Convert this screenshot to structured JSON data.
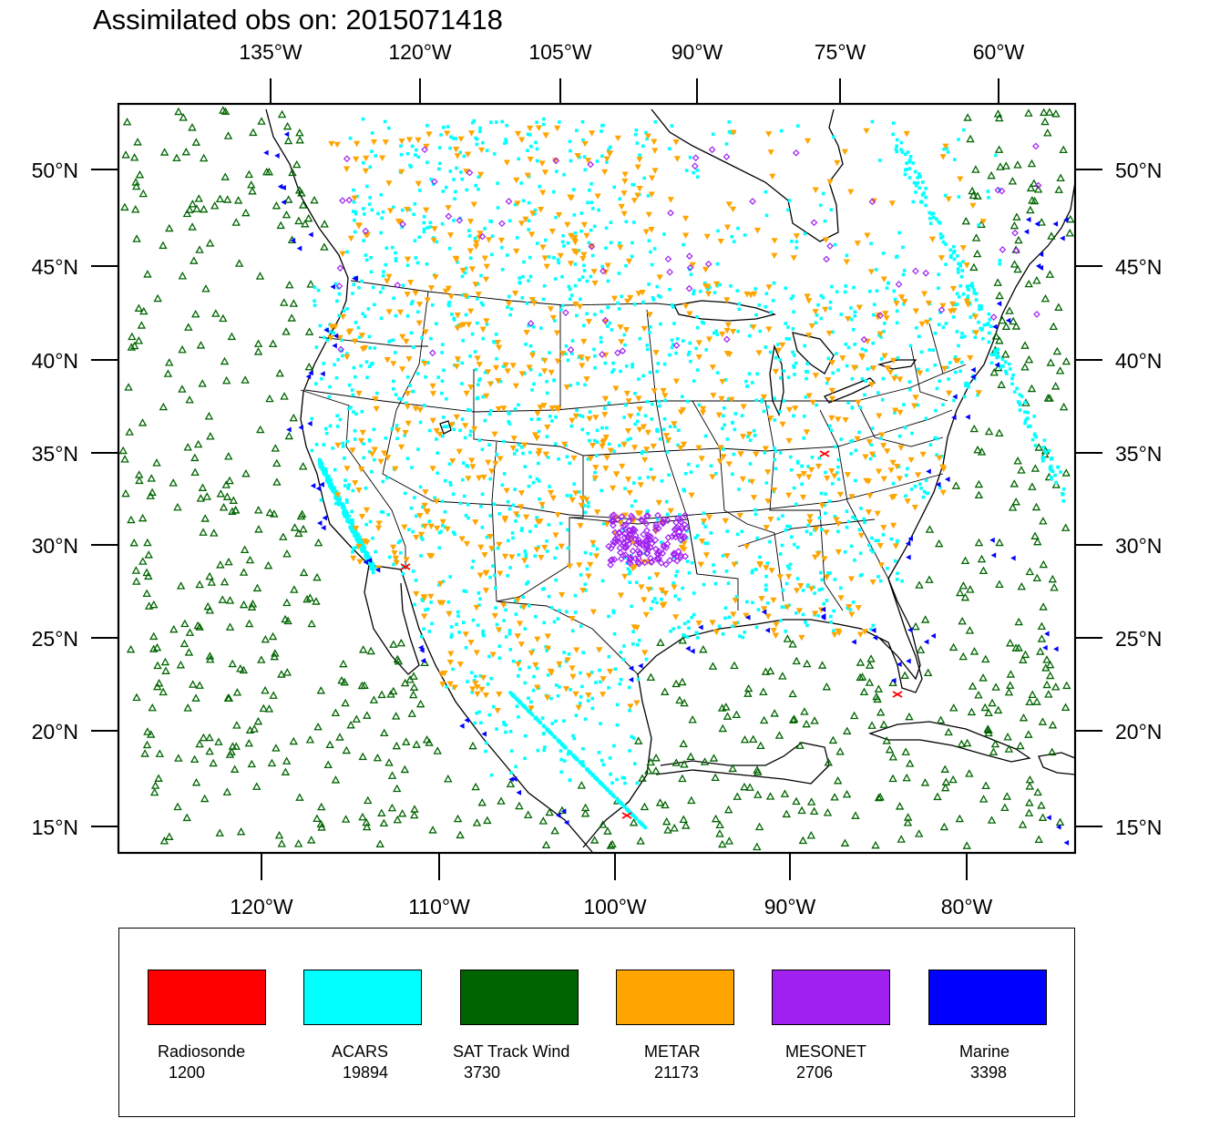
{
  "title": "Assimilated obs on: 2015071418",
  "top_axis": [
    "135°W",
    "120°W",
    "105°W",
    "90°W",
    "75°W",
    "60°W"
  ],
  "bottom_axis": [
    "120°W",
    "110°W",
    "100°W",
    "90°W",
    "80°W"
  ],
  "left_axis": [
    "50°N",
    "45°N",
    "40°N",
    "35°N",
    "30°N",
    "25°N",
    "20°N",
    "15°N"
  ],
  "right_axis": [
    "50°N",
    "45°N",
    "40°N",
    "35°N",
    "30°N",
    "25°N",
    "20°N",
    "15°N"
  ],
  "colors": {
    "radiosonde": "#ff0000",
    "acars": "#00ffff",
    "sat_track_wind": "#006400",
    "metar": "#ffa500",
    "mesonet": "#a020f0",
    "marine": "#0000ff"
  },
  "legend": [
    {
      "name": "Radiosonde",
      "count": "1200",
      "color": "#ff0000"
    },
    {
      "name": "ACARS",
      "count": "19894",
      "color": "#00ffff"
    },
    {
      "name": "SAT Track Wind",
      "count": "3730",
      "color": "#006400"
    },
    {
      "name": "METAR",
      "count": "21173",
      "color": "#ffa500"
    },
    {
      "name": "MESONET",
      "count": "2706",
      "color": "#a020f0"
    },
    {
      "name": "Marine",
      "count": "3398",
      "color": "#0000ff"
    }
  ]
}
